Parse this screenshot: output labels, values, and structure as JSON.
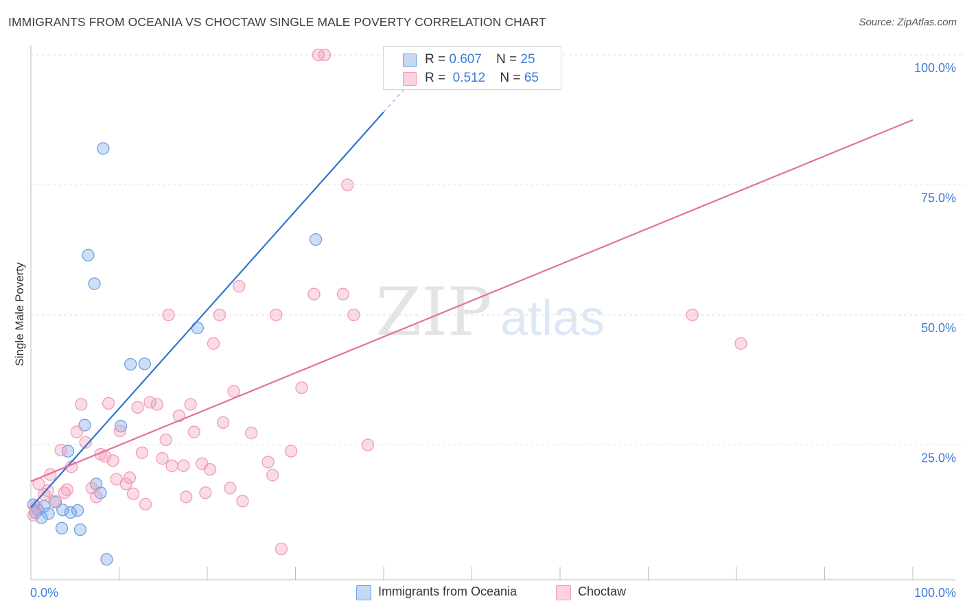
{
  "header": {
    "title": "IMMIGRANTS FROM OCEANIA VS CHOCTAW SINGLE MALE POVERTY CORRELATION CHART",
    "source": "Source: ZipAtlas.com"
  },
  "watermark": {
    "zip": "ZIP",
    "atlas": "atlas"
  },
  "legend": {
    "series1": {
      "r_label": "R = ",
      "r_value": "0.607",
      "n_label": "N = ",
      "n_value": "25"
    },
    "series2": {
      "r_label": "R = ",
      "r_value": "0.512",
      "n_label": "N = ",
      "n_value": "65"
    }
  },
  "chart_data": {
    "type": "scatter",
    "ylabel": "Single Male Poverty",
    "xlim": [
      0,
      100
    ],
    "ylim": [
      0,
      100
    ],
    "x_tick_labels": [
      {
        "value": 0,
        "label": "0.0%"
      },
      {
        "value": 100,
        "label": "100.0%"
      }
    ],
    "y_tick_labels": [
      {
        "value": 25,
        "label": "25.0%"
      },
      {
        "value": 50,
        "label": "50.0%"
      },
      {
        "value": 75,
        "label": "75.0%"
      },
      {
        "value": 100,
        "label": "100.0%"
      }
    ],
    "grid": true,
    "colors": {
      "oceania": "#6fa0e6",
      "choctaw": "#f19bb8",
      "oceania_line": "#2f73d0",
      "choctaw_line": "#e3709a",
      "tick_label": "#3a7bd5"
    },
    "series": [
      {
        "name": "Immigrants from Oceania",
        "key": "oceania",
        "points": [
          [
            0.3,
            13.5
          ],
          [
            0.5,
            12
          ],
          [
            0.8,
            12.5
          ],
          [
            1.2,
            11
          ],
          [
            1.5,
            13.2
          ],
          [
            2,
            11.8
          ],
          [
            2.8,
            14
          ],
          [
            3.5,
            9
          ],
          [
            3.6,
            12.5
          ],
          [
            4.2,
            23.8
          ],
          [
            4.5,
            12
          ],
          [
            5.3,
            12.4
          ],
          [
            5.6,
            8.7
          ],
          [
            6.1,
            28.8
          ],
          [
            6.5,
            61.5
          ],
          [
            7.2,
            56
          ],
          [
            7.4,
            17.5
          ],
          [
            7.9,
            15.8
          ],
          [
            8.2,
            82
          ],
          [
            8.6,
            3
          ],
          [
            10.2,
            28.6
          ],
          [
            11.3,
            40.5
          ],
          [
            12.9,
            40.6
          ],
          [
            18.9,
            47.5
          ],
          [
            32.3,
            64.5
          ]
        ],
        "trend": {
          "x": [
            0,
            40
          ],
          "y": [
            13,
            89
          ]
        }
      },
      {
        "name": "Choctaw",
        "key": "choctaw",
        "points": [
          [
            0.3,
            11.5
          ],
          [
            0.6,
            13.2
          ],
          [
            0.9,
            17.5
          ],
          [
            1.5,
            15.5
          ],
          [
            1.9,
            16.2
          ],
          [
            2.2,
            19.3
          ],
          [
            2.7,
            14.2
          ],
          [
            3.4,
            24
          ],
          [
            3.8,
            15.8
          ],
          [
            4.1,
            16.4
          ],
          [
            4.6,
            20.8
          ],
          [
            5.2,
            27.5
          ],
          [
            5.7,
            32.8
          ],
          [
            6.2,
            25.5
          ],
          [
            6.9,
            16.7
          ],
          [
            7.4,
            15
          ],
          [
            7.9,
            23.2
          ],
          [
            8.4,
            22.8
          ],
          [
            8.8,
            33
          ],
          [
            9.3,
            22
          ],
          [
            9.7,
            18.4
          ],
          [
            10.1,
            27.7
          ],
          [
            10.8,
            17.5
          ],
          [
            11.2,
            18.7
          ],
          [
            11.6,
            15.6
          ],
          [
            12.1,
            32.2
          ],
          [
            12.6,
            23.5
          ],
          [
            13,
            13.6
          ],
          [
            13.5,
            33.2
          ],
          [
            14.3,
            32.8
          ],
          [
            14.9,
            22.4
          ],
          [
            15.3,
            26
          ],
          [
            15.6,
            50
          ],
          [
            16,
            21
          ],
          [
            16.8,
            30.6
          ],
          [
            17.3,
            21
          ],
          [
            17.6,
            15
          ],
          [
            18.1,
            32.8
          ],
          [
            18.5,
            27.5
          ],
          [
            19.4,
            21.4
          ],
          [
            19.8,
            15.8
          ],
          [
            20.3,
            20.3
          ],
          [
            20.7,
            44.5
          ],
          [
            21.4,
            50
          ],
          [
            21.8,
            29.3
          ],
          [
            22.6,
            16.7
          ],
          [
            23,
            35.3
          ],
          [
            23.6,
            55.5
          ],
          [
            24,
            14.2
          ],
          [
            25,
            27.3
          ],
          [
            26.9,
            21.7
          ],
          [
            27.4,
            19.2
          ],
          [
            27.8,
            50
          ],
          [
            28.4,
            5
          ],
          [
            29.5,
            23.8
          ],
          [
            30.7,
            36
          ],
          [
            32.1,
            54
          ],
          [
            32.6,
            100
          ],
          [
            33.3,
            100
          ],
          [
            35.4,
            54
          ],
          [
            35.9,
            75
          ],
          [
            36.6,
            50
          ],
          [
            38.2,
            25
          ],
          [
            75,
            50
          ],
          [
            80.5,
            44.5
          ]
        ],
        "trend": {
          "x": [
            0,
            100
          ],
          "y": [
            18,
            87.5
          ]
        }
      }
    ],
    "legend_position": "top-center",
    "legend_bottom": [
      "Immigrants from Oceania",
      "Choctaw"
    ]
  }
}
